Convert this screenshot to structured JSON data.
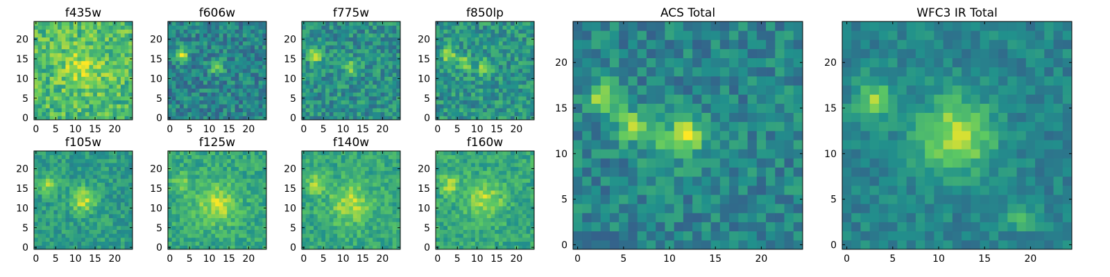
{
  "colors": {
    "colormap": "viridis",
    "viridis_stops": [
      "#440154",
      "#3b528b",
      "#21918c",
      "#5ec962",
      "#fde725"
    ],
    "frame": "#000000",
    "background": "#ffffff"
  },
  "chart_data": [
    {
      "type": "heatmap",
      "title": "f435w",
      "grid_size": 25,
      "xlim": [
        -0.5,
        24.5
      ],
      "ylim": [
        -0.5,
        24.5
      ],
      "xticks": [
        0,
        5,
        10,
        15,
        20
      ],
      "yticks": [
        0,
        5,
        10,
        15,
        20
      ],
      "sources": [
        {
          "x": 12,
          "y": 13,
          "amp": 0.2,
          "sigma": 4
        }
      ],
      "noise": 0.18,
      "base": 0.68,
      "seed": 11
    },
    {
      "type": "heatmap",
      "title": "f606w",
      "grid_size": 25,
      "xlim": [
        -0.5,
        24.5
      ],
      "ylim": [
        -0.5,
        24.5
      ],
      "xticks": [
        0,
        5,
        10,
        15,
        20
      ],
      "yticks": [
        0,
        5,
        10,
        15,
        20
      ],
      "sources": [
        {
          "x": 3,
          "y": 16,
          "amp": 0.45,
          "sigma": 1.2
        },
        {
          "x": 12,
          "y": 13,
          "amp": 0.35,
          "sigma": 1.3
        }
      ],
      "noise": 0.16,
      "base": 0.45,
      "seed": 23
    },
    {
      "type": "heatmap",
      "title": "f775w",
      "grid_size": 25,
      "xlim": [
        -0.5,
        24.5
      ],
      "ylim": [
        -0.5,
        24.5
      ],
      "xticks": [
        0,
        5,
        10,
        15,
        20
      ],
      "yticks": [
        0,
        5,
        10,
        15,
        20
      ],
      "sources": [
        {
          "x": 3,
          "y": 16,
          "amp": 0.45,
          "sigma": 1.2
        },
        {
          "x": 12,
          "y": 13,
          "amp": 0.3,
          "sigma": 1.3
        }
      ],
      "noise": 0.16,
      "base": 0.5,
      "seed": 37
    },
    {
      "type": "heatmap",
      "title": "f850lp",
      "grid_size": 25,
      "xlim": [
        -0.5,
        24.5
      ],
      "ylim": [
        -0.5,
        24.5
      ],
      "xticks": [
        0,
        5,
        10,
        15,
        20
      ],
      "yticks": [
        0,
        5,
        10,
        15,
        20
      ],
      "sources": [
        {
          "x": 3,
          "y": 16,
          "amp": 0.35,
          "sigma": 1.3
        },
        {
          "x": 7,
          "y": 14,
          "amp": 0.3,
          "sigma": 1.2
        },
        {
          "x": 12,
          "y": 13,
          "amp": 0.3,
          "sigma": 1.4
        }
      ],
      "noise": 0.16,
      "base": 0.52,
      "seed": 41
    },
    {
      "type": "heatmap",
      "title": "f105w",
      "grid_size": 25,
      "xlim": [
        -0.5,
        24.5
      ],
      "ylim": [
        -0.5,
        24.5
      ],
      "xticks": [
        0,
        5,
        10,
        15,
        20
      ],
      "yticks": [
        0,
        5,
        10,
        15,
        20
      ],
      "sources": [
        {
          "x": 3,
          "y": 16,
          "amp": 0.3,
          "sigma": 1.6
        },
        {
          "x": 12,
          "y": 12,
          "amp": 0.35,
          "sigma": 2.2
        }
      ],
      "noise": 0.12,
      "base": 0.55,
      "seed": 53
    },
    {
      "type": "heatmap",
      "title": "f125w",
      "grid_size": 25,
      "xlim": [
        -0.5,
        24.5
      ],
      "ylim": [
        -0.5,
        24.5
      ],
      "xticks": [
        0,
        5,
        10,
        15,
        20
      ],
      "yticks": [
        0,
        5,
        10,
        15,
        20
      ],
      "sources": [
        {
          "x": 3,
          "y": 16,
          "amp": 0.2,
          "sigma": 1.8
        },
        {
          "x": 12,
          "y": 11,
          "amp": 0.3,
          "sigma": 3.5
        }
      ],
      "noise": 0.12,
      "base": 0.6,
      "seed": 67
    },
    {
      "type": "heatmap",
      "title": "f140w",
      "grid_size": 25,
      "xlim": [
        -0.5,
        24.5
      ],
      "ylim": [
        -0.5,
        24.5
      ],
      "xticks": [
        0,
        5,
        10,
        15,
        20
      ],
      "yticks": [
        0,
        5,
        10,
        15,
        20
      ],
      "sources": [
        {
          "x": 3,
          "y": 16,
          "amp": 0.25,
          "sigma": 1.8
        },
        {
          "x": 12,
          "y": 11,
          "amp": 0.28,
          "sigma": 3.5
        }
      ],
      "noise": 0.12,
      "base": 0.6,
      "seed": 79
    },
    {
      "type": "heatmap",
      "title": "f160w",
      "grid_size": 25,
      "xlim": [
        -0.5,
        24.5
      ],
      "ylim": [
        -0.5,
        24.5
      ],
      "xticks": [
        0,
        5,
        10,
        15,
        20
      ],
      "yticks": [
        0,
        5,
        10,
        15,
        20
      ],
      "sources": [
        {
          "x": 3,
          "y": 16,
          "amp": 0.25,
          "sigma": 1.8
        },
        {
          "x": 12,
          "y": 12,
          "amp": 0.28,
          "sigma": 3.2
        }
      ],
      "noise": 0.12,
      "base": 0.6,
      "seed": 83
    },
    {
      "type": "heatmap",
      "title": "ACS Total",
      "grid_size": 25,
      "xlim": [
        -0.5,
        24.5
      ],
      "ylim": [
        -0.5,
        24.5
      ],
      "xticks": [
        0,
        5,
        10,
        15,
        20
      ],
      "yticks": [
        0,
        5,
        10,
        15,
        20
      ],
      "sources": [
        {
          "x": 3,
          "y": 16,
          "amp": 0.45,
          "sigma": 1.2
        },
        {
          "x": 6,
          "y": 13,
          "amp": 0.4,
          "sigma": 1.1
        },
        {
          "x": 12,
          "y": 12,
          "amp": 0.45,
          "sigma": 1.4
        },
        {
          "x": 9,
          "y": 11,
          "amp": 0.15,
          "sigma": 2
        }
      ],
      "noise": 0.14,
      "base": 0.45,
      "seed": 97
    },
    {
      "type": "heatmap",
      "title": "WFC3 IR Total",
      "grid_size": 25,
      "xlim": [
        -0.5,
        24.5
      ],
      "ylim": [
        -0.5,
        24.5
      ],
      "xticks": [
        0,
        5,
        10,
        15,
        20
      ],
      "yticks": [
        0,
        5,
        10,
        15,
        20
      ],
      "sources": [
        {
          "x": 3,
          "y": 16,
          "amp": 0.35,
          "sigma": 1.5
        },
        {
          "x": 12,
          "y": 12,
          "amp": 0.45,
          "sigma": 2.8
        },
        {
          "x": 19,
          "y": 3,
          "amp": 0.2,
          "sigma": 1
        }
      ],
      "noise": 0.1,
      "base": 0.45,
      "seed": 101
    }
  ]
}
